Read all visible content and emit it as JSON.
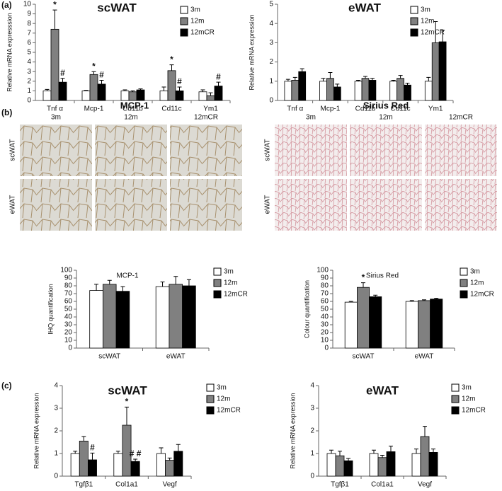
{
  "panels": [
    "(a)",
    "(b)",
    "(c)"
  ],
  "micrographs": [
    {
      "title": "MCP-1",
      "columns": [
        "3m",
        "12m",
        "12mCR"
      ],
      "rows": [
        "scWAT",
        "eWAT"
      ]
    },
    {
      "title": "Sirius Red",
      "columns": [
        "3m",
        "12m",
        "12mCR"
      ],
      "rows": [
        "scWAT",
        "eWAT"
      ]
    }
  ],
  "chart_data": [
    {
      "type": "bar",
      "title": "scWAT",
      "ylabel": "Relative mRNA expresssion",
      "categories": [
        "Tnf α",
        "Mcp-1",
        "Cd11b",
        "Cd11c",
        "Ym1"
      ],
      "series": [
        {
          "name": "3m",
          "color": "#ffffff",
          "values": [
            1.0,
            1.0,
            1.0,
            1.0,
            0.9
          ],
          "errors": [
            0.15,
            0.05,
            0.1,
            0.4,
            0.2
          ]
        },
        {
          "name": "12m",
          "color": "#808080",
          "values": [
            7.4,
            2.7,
            0.9,
            3.1,
            0.5
          ],
          "errors": [
            2.0,
            0.3,
            0.1,
            0.6,
            0.3
          ]
        },
        {
          "name": "12mCR",
          "color": "#000000",
          "values": [
            1.9,
            1.7,
            1.1,
            1.0,
            1.5
          ],
          "errors": [
            0.4,
            0.4,
            0.1,
            0.4,
            0.4
          ]
        }
      ],
      "ylim": [
        0,
        10
      ],
      "yticks": [
        0,
        1,
        2,
        3,
        4,
        5,
        6,
        7,
        8,
        9,
        10
      ],
      "legend": "upper right",
      "annotations": [
        {
          "text": "*",
          "category": "Tnf α",
          "series": "12m"
        },
        {
          "text": "#",
          "category": "Tnf α",
          "series": "12mCR"
        },
        {
          "text": "*",
          "category": "Mcp-1",
          "series": "12m"
        },
        {
          "text": "#",
          "category": "Mcp-1",
          "series": "12mCR"
        },
        {
          "text": "*",
          "category": "Cd11c",
          "series": "12m"
        },
        {
          "text": "#",
          "category": "Cd11c",
          "series": "12mCR"
        },
        {
          "text": "#",
          "category": "Ym1",
          "series": "12mCR"
        }
      ]
    },
    {
      "type": "bar",
      "title": "eWAT",
      "ylabel": "Relative mRNA expression",
      "categories": [
        "Tnf α",
        "Mcp-1",
        "Cd11b",
        "Cd11c",
        "Ym1"
      ],
      "series": [
        {
          "name": "3m",
          "color": "#ffffff",
          "values": [
            1.0,
            1.0,
            1.0,
            1.0,
            1.0
          ],
          "errors": [
            0.1,
            0.15,
            0.05,
            0.05,
            0.2
          ]
        },
        {
          "name": "12m",
          "color": "#808080",
          "values": [
            1.05,
            1.15,
            1.15,
            1.15,
            3.0
          ],
          "errors": [
            0.15,
            0.3,
            0.1,
            0.15,
            1.1
          ]
        },
        {
          "name": "12mCR",
          "color": "#000000",
          "values": [
            1.5,
            0.7,
            1.05,
            0.8,
            3.05
          ],
          "errors": [
            0.15,
            0.15,
            0.1,
            0.1,
            0.6
          ]
        }
      ],
      "ylim": [
        0,
        5
      ],
      "yticks": [
        0,
        1,
        2,
        3,
        4,
        5
      ],
      "legend": "upper right",
      "annotations": []
    },
    {
      "type": "bar",
      "title": "MCP-1",
      "ylabel": "IHQ quantification",
      "categories": [
        "scWAT",
        "eWAT"
      ],
      "series": [
        {
          "name": "3m",
          "color": "#ffffff",
          "values": [
            74,
            79
          ],
          "errors": [
            8,
            6
          ]
        },
        {
          "name": "12m",
          "color": "#808080",
          "values": [
            82,
            82
          ],
          "errors": [
            5,
            10
          ]
        },
        {
          "name": "12mCR",
          "color": "#000000",
          "values": [
            73,
            80
          ],
          "errors": [
            6,
            8
          ]
        }
      ],
      "ylim": [
        0,
        100
      ],
      "yticks": [
        0,
        10,
        20,
        30,
        40,
        50,
        60,
        70,
        80,
        90,
        100
      ],
      "legend": "upper right",
      "annotations": []
    },
    {
      "type": "bar",
      "title": "Sirius Red",
      "ylabel": "Colour quantification",
      "categories": [
        "scWAT",
        "eWAT"
      ],
      "series": [
        {
          "name": "3m",
          "color": "#ffffff",
          "values": [
            59,
            60
          ],
          "errors": [
            1,
            1
          ]
        },
        {
          "name": "12m",
          "color": "#808080",
          "values": [
            78,
            61
          ],
          "errors": [
            6,
            1
          ]
        },
        {
          "name": "12mCR",
          "color": "#000000",
          "values": [
            66,
            63
          ],
          "errors": [
            2,
            1
          ]
        }
      ],
      "ylim": [
        0,
        100
      ],
      "yticks": [
        0,
        10,
        20,
        30,
        40,
        50,
        60,
        70,
        80,
        90,
        100
      ],
      "legend": "upper right",
      "annotations": [
        {
          "text": "*",
          "category": "scWAT",
          "series": "12m"
        }
      ]
    },
    {
      "type": "bar",
      "title": "scWAT",
      "ylabel": "Relative mRNA expression",
      "categories": [
        "Tgfβ1",
        "Col1a1",
        "Vegf"
      ],
      "series": [
        {
          "name": "3m",
          "color": "#ffffff",
          "values": [
            1.0,
            1.0,
            1.0
          ],
          "errors": [
            0.1,
            0.1,
            0.25
          ]
        },
        {
          "name": "12m",
          "color": "#808080",
          "values": [
            1.55,
            2.25,
            0.7
          ],
          "errors": [
            0.2,
            0.8,
            0.1
          ]
        },
        {
          "name": "12mCR",
          "color": "#000000",
          "values": [
            0.72,
            0.65,
            1.1
          ],
          "errors": [
            0.3,
            0.1,
            0.3
          ]
        }
      ],
      "ylim": [
        0,
        4
      ],
      "yticks": [
        0,
        1,
        2,
        3,
        4
      ],
      "legend": "upper right",
      "annotations": [
        {
          "text": "#",
          "category": "Tgfβ1",
          "series": "12mCR"
        },
        {
          "text": "*",
          "category": "Col1a1",
          "series": "12m"
        },
        {
          "text": "# #",
          "category": "Col1a1",
          "series": "12mCR"
        }
      ]
    },
    {
      "type": "bar",
      "title": "eWAT",
      "ylabel": "Relative mRNA expression",
      "categories": [
        "Tgfβ1",
        "Col1a1",
        "Vegf"
      ],
      "series": [
        {
          "name": "3m",
          "color": "#ffffff",
          "values": [
            1.0,
            1.0,
            1.0
          ],
          "errors": [
            0.15,
            0.15,
            0.2
          ]
        },
        {
          "name": "12m",
          "color": "#808080",
          "values": [
            0.9,
            0.82,
            1.75
          ],
          "errors": [
            0.2,
            0.1,
            0.45
          ]
        },
        {
          "name": "12mCR",
          "color": "#000000",
          "values": [
            0.68,
            1.08,
            1.05
          ],
          "errors": [
            0.1,
            0.25,
            0.15
          ]
        }
      ],
      "ylim": [
        0,
        4
      ],
      "yticks": [
        0,
        1,
        2,
        3,
        4
      ],
      "legend": "upper right",
      "annotations": []
    }
  ]
}
